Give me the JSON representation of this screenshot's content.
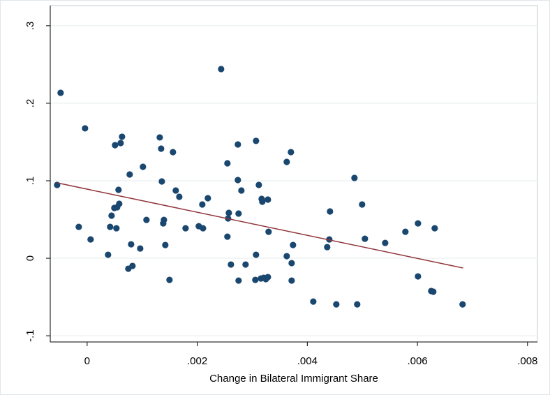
{
  "chart_data": {
    "type": "scatter",
    "x_label": "Change in Bilateral Immigrant Share",
    "color": "#1a476f",
    "grid": true,
    "xlim": [
      -0.00067,
      0.00818
    ],
    "ylim": [
      -0.108,
      0.326
    ],
    "xticks": [
      0,
      {
        "value": 0.002,
        "label": ".002"
      },
      {
        "value": 0.004,
        "label": ".004"
      },
      {
        "value": 0.006,
        "label": ".006"
      },
      {
        "value": 0.008,
        "label": ".008"
      }
    ],
    "yticks": [
      {
        "value": -0.1,
        "label": "-.1"
      },
      0,
      {
        "value": 0.1,
        "label": ".1"
      },
      {
        "value": 0.2,
        "label": ".2"
      },
      {
        "value": 0.3,
        "label": ".3"
      }
    ],
    "x": [
      -0.000545,
      -0.000482,
      -0.000152,
      -3.8e-05,
      6.3e-05,
      0.00038,
      0.000418,
      0.000444,
      0.000494,
      0.000507,
      0.000532,
      0.000545,
      0.00057,
      0.000583,
      0.000609,
      0.000634,
      0.000748,
      0.000773,
      0.000799,
      0.000824,
      0.000964,
      0.001014,
      0.001078,
      0.001319,
      0.001344,
      0.001357,
      0.001382,
      0.001395,
      0.00142,
      0.001496,
      0.001559,
      0.00161,
      0.001674,
      0.001788,
      0.002028,
      0.002092,
      0.002105,
      0.002193,
      0.002434,
      0.002548,
      0.002548,
      0.002561,
      0.002574,
      0.002612,
      0.002738,
      0.002751,
      0.002751,
      0.002738,
      0.002802,
      0.002878,
      0.003055,
      0.003068,
      0.003068,
      0.003119,
      0.003157,
      0.00317,
      0.003182,
      0.003208,
      0.003246,
      0.003284,
      0.003284,
      0.003296,
      0.003626,
      0.003626,
      0.003702,
      0.003715,
      0.003715,
      0.00374,
      0.004108,
      0.004361,
      0.004399,
      0.004412,
      0.004526,
      0.004856,
      0.004906,
      0.004995,
      0.005046,
      0.005414,
      0.005781,
      0.00601,
      0.00601,
      0.00625,
      0.006288,
      0.006314,
      0.00682
    ],
    "y": [
      0.0946,
      0.2135,
      0.0405,
      0.1676,
      0.0243,
      0.0045,
      0.0405,
      0.055,
      0.0649,
      0.1459,
      0.0387,
      0.0658,
      0.0883,
      0.0703,
      0.1486,
      0.1568,
      -0.0135,
      0.1081,
      0.018,
      -0.0099,
      0.0126,
      0.118,
      0.0495,
      0.1559,
      0.1414,
      0.0991,
      0.045,
      0.0495,
      0.0171,
      -0.0279,
      0.1369,
      0.0874,
      0.0793,
      0.0387,
      0.0414,
      0.0694,
      0.0387,
      0.0775,
      0.2441,
      0.1225,
      0.0279,
      0.0514,
      0.0586,
      -0.0081,
      0.1468,
      0.0577,
      -0.0288,
      0.1009,
      0.0874,
      -0.0081,
      -0.0279,
      0.1514,
      0.0045,
      0.0946,
      -0.0261,
      0.0766,
      0.073,
      -0.0252,
      -0.027,
      -0.0243,
      0.0757,
      0.0342,
      0.1243,
      0.0027,
      0.1369,
      -0.0063,
      -0.0288,
      0.0171,
      -0.0559,
      0.0144,
      0.0243,
      0.0604,
      -0.0595,
      0.1036,
      -0.0595,
      0.0694,
      0.0252,
      0.0198,
      0.0342,
      0.045,
      -0.0234,
      -0.0423,
      -0.0432,
      0.0387,
      -0.0595
    ],
    "fit": {
      "x": [
        -0.000545,
        0.00683
      ],
      "y": [
        0.0973,
        -0.0126
      ],
      "color": "#90353b"
    }
  }
}
